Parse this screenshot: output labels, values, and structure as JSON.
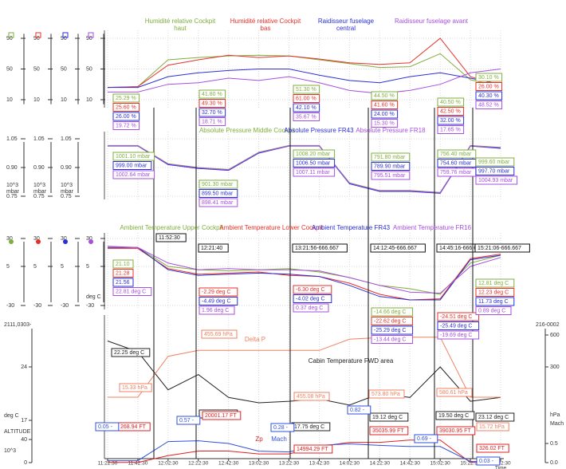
{
  "chart_data": [
    {
      "type": "line",
      "ylim": [
        0,
        100
      ],
      "yticks": [
        90,
        50,
        10
      ],
      "series": [
        {
          "name": "Humidité relative Cockpit haut",
          "color": "#7fae3c",
          "values": [
            26,
            27,
            62,
            65,
            67,
            68,
            67,
            62,
            57,
            52,
            53,
            70,
            36,
            27
          ],
          "readouts": [
            "25.29 %",
            "41.80 %",
            "51.30 %",
            "44.50 %",
            "40.50 %",
            "30.10 %"
          ]
        },
        {
          "name": "Humidité relative Cockpit bas",
          "color": "#e8302a",
          "values": [
            26,
            27,
            55,
            62,
            68,
            65,
            67,
            63,
            58,
            56,
            58,
            90,
            40,
            28
          ],
          "readouts": [
            "25.60 %",
            "49.30 %",
            "61.00 %",
            "41.60 %",
            "42.50 %",
            "26.00 %"
          ]
        },
        {
          "name": "Raidisseur fuselage central",
          "color": "#2b2fd6",
          "values": [
            26,
            26,
            40,
            45,
            48,
            50,
            50,
            42,
            35,
            32,
            40,
            45,
            38,
            30
          ],
          "readouts": [
            "26.00 %",
            "32.70 %",
            "42.10 %",
            "24.00 %",
            "32.00 %",
            "40.30 %"
          ]
        },
        {
          "name": "Raidisseur fuselage avant",
          "color": "#a64fe0",
          "values": [
            20,
            20,
            30,
            32,
            38,
            35,
            40,
            32,
            22,
            18,
            22,
            30,
            45,
            50
          ],
          "readouts": [
            "19.72 %",
            "18.71 %",
            "35.67 %",
            "15.30 %",
            "17.65 %",
            "48.52 %"
          ]
        }
      ]
    },
    {
      "type": "line",
      "ylim": [
        0.75,
        1.05
      ],
      "yticks": [
        1.05,
        {
          "value": 0.9,
          "label": "0.90"
        },
        0.75
      ],
      "ylabel": [
        "10^3",
        "mbar"
      ],
      "series": [
        {
          "name": "Absolute Pressure Middle Cockpit",
          "color": "#7fae3c",
          "values": [
            1.015,
            1.015,
            0.92,
            0.9,
            0.89,
            0.98,
            1.015,
            1.015,
            0.82,
            0.78,
            0.78,
            0.77,
            1.015,
            1.005
          ],
          "readouts": [
            "1001.10 mbar",
            "901.30 mbar",
            "1008.20 mbar",
            "791.80 mbar",
            "756.40 mbar",
            "999.60 mbar"
          ]
        },
        {
          "name": "Absolute Pressure FR43",
          "color": "#2b2fd6",
          "values": [
            1.012,
            1.012,
            0.915,
            0.895,
            0.885,
            0.975,
            1.012,
            1.012,
            0.815,
            0.775,
            0.775,
            0.765,
            1.012,
            1.0
          ],
          "readouts": [
            "999.00 mbar",
            "899.50 mbar",
            "1006.50 mbar",
            "789.90 mbar",
            "754.60 mbar",
            "997.70 mbar"
          ]
        },
        {
          "name": "Absolute Pressure FR18",
          "color": "#a64fe0",
          "values": [
            1.013,
            1.013,
            0.918,
            0.898,
            0.888,
            0.978,
            1.013,
            1.013,
            0.818,
            0.778,
            0.778,
            0.768,
            1.013,
            1.003
          ],
          "readouts": [
            "1002.64 mbar",
            "898.41 mbar",
            "1007.11 mbar",
            "795.51 mbar",
            "759.76 mbar",
            "1004.93 mbar"
          ]
        }
      ]
    },
    {
      "type": "line",
      "ylim": [
        -30,
        30
      ],
      "yticks": [
        30,
        5,
        -30
      ],
      "ylabel": "deg C",
      "series": [
        {
          "name": "Ambient Temperature Upper Cockpit",
          "color": "#7fae3c",
          "values": [
            22,
            22,
            5,
            2,
            1,
            2,
            3,
            0,
            -5,
            -12,
            -15,
            -20,
            8,
            15
          ],
          "readouts": [
            "21.10",
            null,
            null,
            "-14.66 deg C",
            null,
            "12.81 deg C"
          ]
        },
        {
          "name": "Ambient Temperature Lower Cockpit",
          "color": "#e8302a",
          "values": [
            21,
            21,
            3,
            -2,
            -1,
            0,
            -3,
            -4,
            -10,
            -20,
            -25,
            -24,
            12,
            16
          ],
          "readouts": [
            "21.28",
            "-2.29 deg C",
            "-6.30 deg C",
            "-22.62 deg C",
            "-24.51 deg C",
            "12.23 deg C"
          ]
        },
        {
          "name": "Ambient Temperature FR43",
          "color": "#2b2fd6",
          "values": [
            22,
            22,
            2,
            -3,
            -2,
            -1,
            -2,
            -4,
            -12,
            -22,
            -25,
            -25,
            11,
            15
          ],
          "readouts": [
            "21.56",
            "-4.49 deg C",
            "-4.02 deg C",
            "-25.29 deg C",
            "-25.49 deg C",
            "11.73 deg C"
          ]
        },
        {
          "name": "Ambient Temperature FR16",
          "color": "#a64fe0",
          "values": [
            23,
            22,
            8,
            2,
            3,
            2,
            2,
            1,
            -5,
            -12,
            -18,
            -19,
            5,
            13
          ],
          "readouts": [
            "22.81 deg C",
            "1.96 deg C",
            "0.37 deg C",
            "-13.44 deg C",
            "-19.69 deg C",
            "0.89 deg C"
          ]
        }
      ]
    },
    {
      "type": "line",
      "xlabel": "Time",
      "x": [
        "11:22:30",
        "11:42:30",
        "12:02:30",
        "12:22:30",
        "12:42:30",
        "13:02:30",
        "13:22:30",
        "13:42:30",
        "14:02:30",
        "14:22:30",
        "14:42:30",
        "15:02:30",
        "15:22:30",
        "15:42:30"
      ],
      "y_top_label": "2111,0303-",
      "ylim": [
        17,
        31
      ],
      "yticks": [
        24,
        17
      ],
      "ylabel": "deg C",
      "y2_top_label": "216-0002",
      "y2lim": [
        0,
        600
      ],
      "y2ticks": [
        600,
        300
      ],
      "y2label": "hPa",
      "y3lim": [
        0,
        40
      ],
      "y3ticks": [
        40,
        0
      ],
      "y3label": "ALTITUDE",
      "y3unit": "10^3",
      "y4lim": [
        0,
        0.5
      ],
      "y4ticks": [
        0.5,
        {
          "value": 0,
          "label": "0.0"
        }
      ],
      "y4label": "Mach",
      "series": [
        {
          "name": "Cabin Temperature FWD area",
          "color": "#222222",
          "axis": "y",
          "values": [
            27.4,
            26,
            21,
            23,
            20,
            19.3,
            19.5,
            19.8,
            19,
            20.5,
            20,
            24,
            19.5,
            20
          ],
          "readouts": [
            "22.25 deg C",
            "24.75 deg C",
            "17.75 deg C",
            "19.12 deg C",
            "19.50 deg C",
            "23.12 deg C"
          ]
        },
        {
          "name": "Delta P",
          "color": "#f08060",
          "axis": "y2",
          "values": [
            15,
            15,
            400,
            455,
            455,
            455,
            455,
            455,
            560,
            575,
            580,
            580,
            15,
            15
          ],
          "readouts": [
            "15.33 hPa",
            "455.69 hPa",
            "455.08 hPa",
            "573.80 hPa",
            "580.61 hPa",
            "15.72 hPa"
          ]
        },
        {
          "name": "Zp",
          "color": "#e02020",
          "axis": "y3",
          "values": [
            0.3,
            0.3,
            12,
            20,
            20,
            15,
            15,
            28,
            35,
            35,
            39,
            39,
            0.3,
            0.3
          ],
          "readouts": [
            "268.94 FT",
            "20001.17 FT",
            "14994.29 FT",
            "35035.99 FT",
            "39030.95 FT",
            "326.02 FT"
          ]
        },
        {
          "name": "Mach",
          "color": "#3050e0",
          "axis": "y4",
          "values": [
            0.05,
            0.05,
            0.55,
            0.57,
            0.5,
            0.3,
            0.28,
            0.45,
            0.49,
            0.45,
            0.42,
            0.42,
            0.03,
            0.03
          ],
          "readouts": [
            "0.05 -",
            "0.57 -",
            "0.28 -",
            "0.82 -",
            "0.69 -",
            "0.03 -"
          ]
        }
      ]
    }
  ],
  "cursors": [
    "11:52:30",
    "12:21:40",
    "13:21:56-666.667",
    "14:12:45-666.667",
    "14:45:16-666.667",
    "15:21:06-666.667"
  ]
}
